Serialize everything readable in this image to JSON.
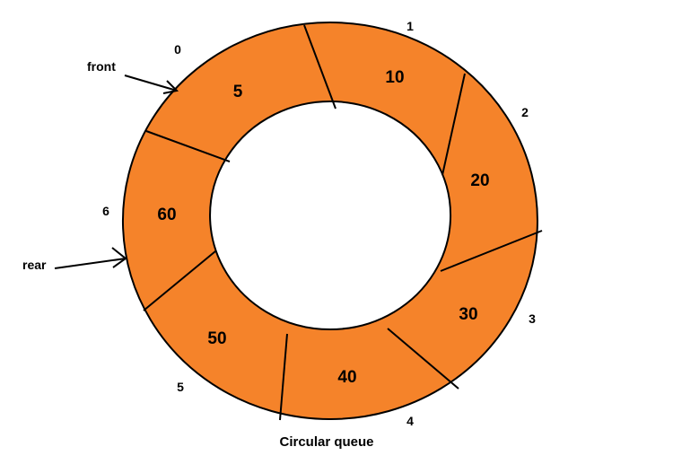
{
  "colors": {
    "segment_fill": "#f5832a",
    "outline": "#000000",
    "background": "#ffffff"
  },
  "queue": {
    "segments": [
      {
        "index": "0",
        "value": "5"
      },
      {
        "index": "1",
        "value": "10"
      },
      {
        "index": "2",
        "value": "20"
      },
      {
        "index": "3",
        "value": "30"
      },
      {
        "index": "4",
        "value": "40"
      },
      {
        "index": "5",
        "value": "50"
      },
      {
        "index": "6",
        "value": "60"
      }
    ]
  },
  "pointers": {
    "front": "front",
    "rear": "rear"
  },
  "caption": "Circular queue"
}
